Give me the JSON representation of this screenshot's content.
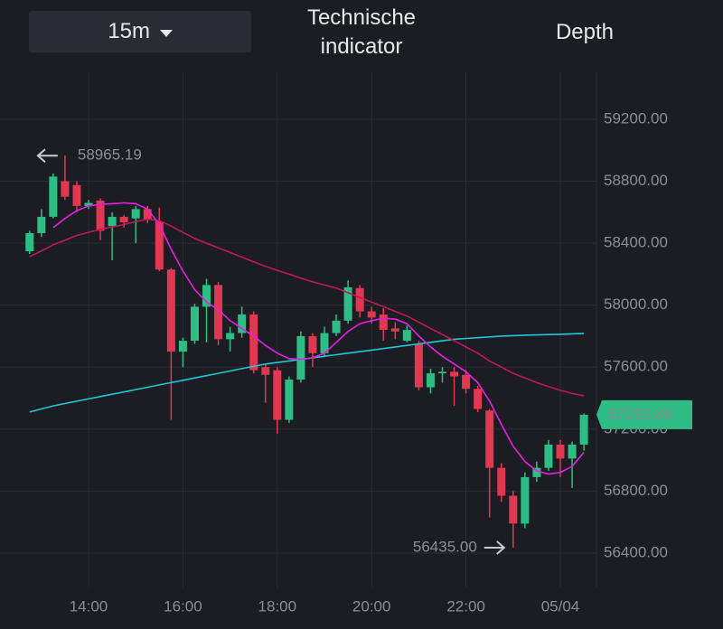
{
  "header": {
    "interval": "15m",
    "indicator": "Technische indicator",
    "depth": "Depth"
  },
  "chart_data": {
    "type": "candlestick",
    "categories": [
      null,
      null,
      null,
      null,
      null,
      "14:00",
      null,
      null,
      null,
      null,
      null,
      null,
      null,
      "16:00",
      null,
      null,
      null,
      null,
      null,
      null,
      null,
      "18:00",
      null,
      null,
      null,
      null,
      null,
      null,
      null,
      "20:00",
      null,
      null,
      null,
      null,
      null,
      null,
      null,
      "22:00",
      null,
      null,
      null,
      null,
      null,
      null,
      null,
      "05/04",
      null,
      null
    ],
    "open": [
      58348,
      58465,
      58570,
      58800,
      58775,
      58640,
      58675,
      58510,
      58570,
      58560,
      58620,
      58540,
      58230,
      57700,
      57770,
      57990,
      58130,
      57780,
      57820,
      57940,
      57600,
      57580,
      57260,
      57520,
      57800,
      57690,
      57820,
      57900,
      58110,
      57960,
      57940,
      57850,
      57770,
      57750,
      57470,
      57560,
      57570,
      57550,
      57460,
      57320,
      56950,
      56770,
      56590,
      56890,
      56950,
      57100,
      57010,
      57100
    ],
    "high": [
      58480,
      58620,
      58850,
      58965.19,
      58800,
      58680,
      58690,
      58600,
      58580,
      58640,
      58640,
      58630,
      58240,
      57790,
      58010,
      58170,
      58150,
      57860,
      57990,
      57960,
      57620,
      57600,
      57540,
      57830,
      57820,
      57860,
      57940,
      58160,
      58130,
      57990,
      57980,
      57890,
      57870,
      57770,
      57590,
      57600,
      57600,
      57580,
      57480,
      57330,
      56980,
      56800,
      56920,
      56990,
      57130,
      57130,
      57120,
      57300
    ],
    "low": [
      58330,
      58440,
      58560,
      58680,
      58600,
      58620,
      58420,
      58290,
      58500,
      58400,
      58530,
      58220,
      57260,
      57600,
      57750,
      57760,
      57740,
      57700,
      57790,
      57560,
      57370,
      57170,
      57240,
      57500,
      57600,
      57670,
      57800,
      57880,
      57920,
      57880,
      57770,
      57780,
      57760,
      57450,
      57430,
      57500,
      57350,
      57430,
      57310,
      56630,
      56730,
      56435,
      56560,
      56860,
      56930,
      56890,
      56820,
      57060
    ],
    "close": [
      58465,
      58570,
      58830,
      58700,
      58640,
      58660,
      58480,
      58570,
      58535,
      58620,
      58550,
      58230,
      57700,
      57770,
      57990,
      58130,
      57780,
      57820,
      57940,
      57580,
      57550,
      57260,
      57520,
      57800,
      57690,
      57820,
      57900,
      58115,
      57960,
      57920,
      57840,
      57830,
      57840,
      57470,
      57560,
      57570,
      57540,
      57460,
      57330,
      56950,
      56770,
      56590,
      56890,
      56950,
      57100,
      57010,
      57100,
      57292.88
    ],
    "up_color": "#2dbd85",
    "down_color": "#e03752",
    "overlays": [
      {
        "color": "#1fc8d6",
        "values": [
          57310,
          57330,
          57350,
          57365,
          57380,
          57395,
          57410,
          57425,
          57440,
          57455,
          57470,
          57485,
          57500,
          57515,
          57530,
          57545,
          57560,
          57575,
          57590,
          57605,
          57620,
          57630,
          57640,
          57650,
          57660,
          57670,
          57680,
          57690,
          57700,
          57710,
          57720,
          57730,
          57740,
          57750,
          57760,
          57770,
          57780,
          57785,
          57790,
          57795,
          57800,
          57803,
          57806,
          57808,
          57810,
          57812,
          57815,
          57818
        ]
      },
      {
        "color": "#c2185b",
        "values": [
          58313,
          58350,
          58390,
          58420,
          58450,
          58470,
          58490,
          58505,
          58520,
          58540,
          58555,
          58545,
          58510,
          58470,
          58430,
          58400,
          58370,
          58340,
          58310,
          58280,
          58250,
          58225,
          58200,
          58175,
          58150,
          58130,
          58110,
          58080,
          58050,
          58020,
          57990,
          57960,
          57930,
          57890,
          57850,
          57810,
          57770,
          57730,
          57690,
          57640,
          57600,
          57560,
          57530,
          57500,
          57475,
          57450,
          57430,
          57415
        ]
      },
      {
        "color": "#e41fe4",
        "values": [
          null,
          null,
          58500,
          58560,
          58610,
          58640,
          58650,
          58655,
          58660,
          58655,
          58620,
          58520,
          58360,
          58220,
          58100,
          58020,
          57970,
          57900,
          57850,
          57800,
          57740,
          57690,
          57655,
          57650,
          57660,
          57690,
          57760,
          57830,
          57880,
          57900,
          57915,
          57910,
          57880,
          57800,
          57730,
          57670,
          57620,
          57570,
          57500,
          57380,
          57230,
          57090,
          56990,
          56930,
          56910,
          56920,
          56960,
          57050
        ]
      }
    ],
    "ylim": [
      56178,
      59503
    ],
    "yticks": [
      {
        "value": 56400,
        "label": "56400.00"
      },
      {
        "value": 56800,
        "label": "56800.00"
      },
      {
        "value": 57200,
        "label": "57200.00"
      },
      {
        "value": 57600,
        "label": "57600.00"
      },
      {
        "value": 58000,
        "label": "58000.00"
      },
      {
        "value": 58400,
        "label": "58400.00"
      },
      {
        "value": 58800,
        "label": "58800.00"
      },
      {
        "value": 59200,
        "label": "59200.00"
      }
    ],
    "grid": true,
    "high_label": 58965.19,
    "low_label": {
      "value": 56435,
      "label": "56435.00"
    },
    "last_price": 57292.88
  }
}
